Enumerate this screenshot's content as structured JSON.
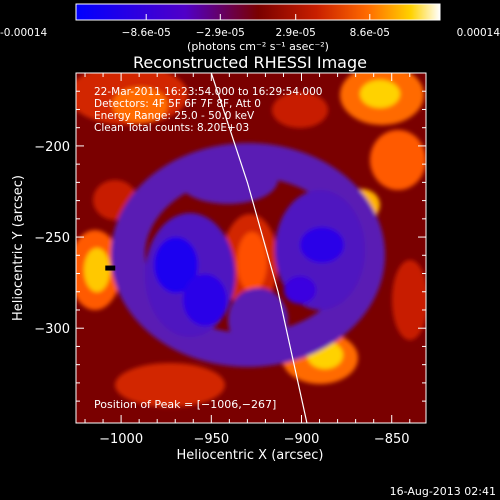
{
  "colorbar": {
    "ticks": [
      {
        "label": "-0.00014",
        "value": -0.00014
      },
      {
        "label": "−8.6e-05",
        "value": -8.6e-05
      },
      {
        "label": "−2.9e-05",
        "value": -2.9e-05
      },
      {
        "label": "2.9e-05",
        "value": 2.9e-05
      },
      {
        "label": "8.6e-05",
        "value": 8.6e-05
      },
      {
        "label": "0.00014",
        "value": 0.00014
      }
    ],
    "unit_label": "(photons cm⁻² s⁻¹ asec⁻²)",
    "range": [
      -0.00014,
      0.00014
    ],
    "colors": [
      "#0000ff",
      "#5000c8",
      "#7a0000",
      "#c81e00",
      "#ff6a00",
      "#ffd200",
      "#ffffff"
    ]
  },
  "chart_data": {
    "type": "heatmap",
    "title": "Reconstructed RHESSI Image",
    "xlabel": "Heliocentric X (arcsec)",
    "ylabel": "Heliocentric Y (arcsec)",
    "xlim": [
      -1025,
      -831
    ],
    "ylim": [
      -352,
      -160
    ],
    "x_ticks": [
      {
        "label": "−1000",
        "value": -1000
      },
      {
        "label": "−950",
        "value": -950
      },
      {
        "label": "−900",
        "value": -900
      },
      {
        "label": "−850",
        "value": -850
      }
    ],
    "y_ticks": [
      {
        "label": "−200",
        "value": -200
      },
      {
        "label": "−250",
        "value": -250
      },
      {
        "label": "−300",
        "value": -300
      }
    ],
    "annotations": [
      "22-Mar-2011 16:23:54.000 to 16:29:54.000",
      "Detectors: 4F 5F 6F 7F 8F, Att 0",
      "Energy Range: 25.0 - 50.0 keV",
      "Clean     Total counts: 8.20E+03"
    ],
    "peak_label": "Position of Peak = [−1006,−267]",
    "peak_position": [
      -1006,
      -267
    ],
    "limb_curve": [
      [
        -950,
        -160
      ],
      [
        -930,
        -220
      ],
      [
        -913,
        -280
      ],
      [
        -897,
        -352
      ]
    ]
  },
  "footer": {
    "date": "16-Aug-2013 02:41"
  }
}
